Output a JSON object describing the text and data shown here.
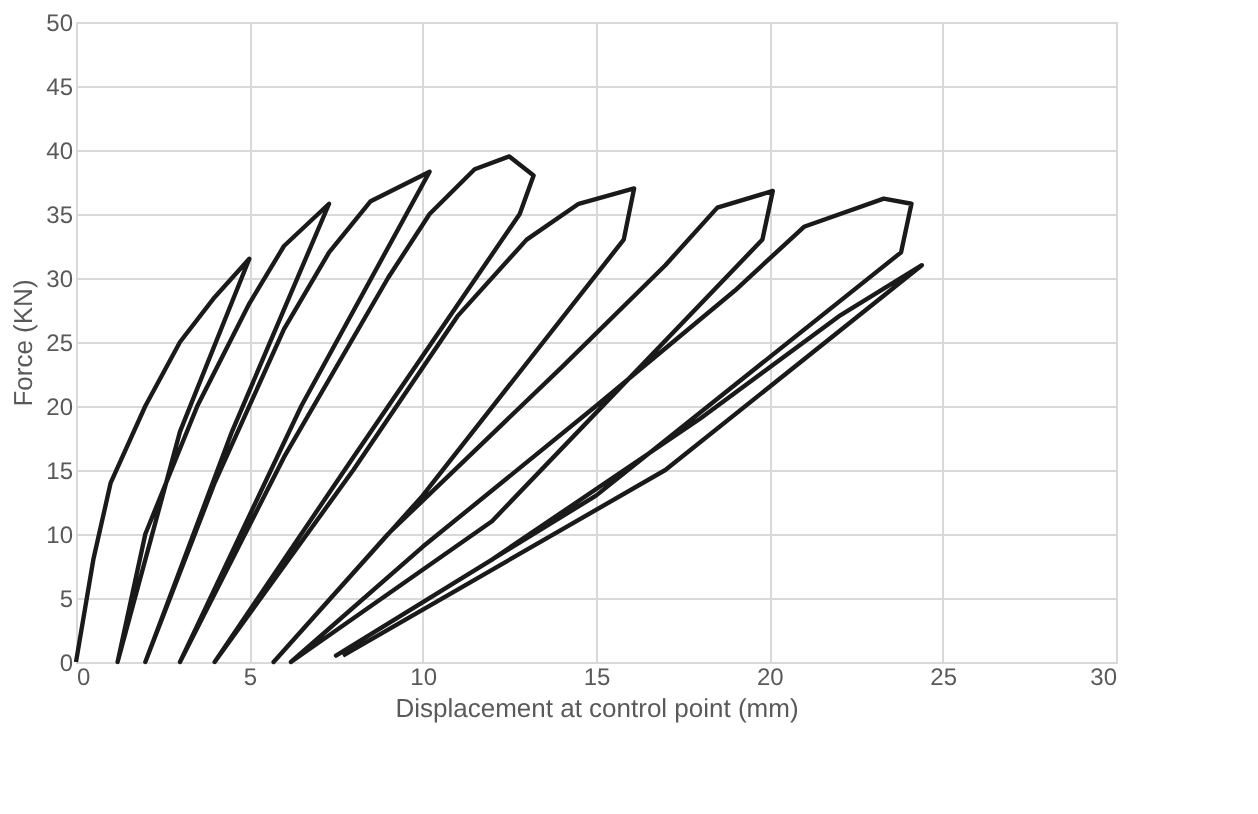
{
  "chart_data": {
    "type": "line",
    "xlabel": "Displacement at control point (mm)",
    "ylabel": "Force (KN)",
    "xlim": [
      0,
      30
    ],
    "ylim": [
      0,
      50
    ],
    "xticks": [
      0,
      5,
      10,
      15,
      20,
      25,
      30
    ],
    "yticks": [
      0,
      5,
      10,
      15,
      20,
      25,
      30,
      35,
      40,
      45,
      50
    ],
    "grid": true,
    "line_style": "solid",
    "series": [
      {
        "color": "#1a1a1a",
        "x": [
          0,
          0.5,
          1,
          2,
          3,
          4,
          5,
          3,
          1.2,
          2,
          3.5,
          5,
          6,
          7.3,
          4.5,
          2,
          4,
          6,
          7.3,
          8.5,
          10.2,
          6.5,
          3,
          6,
          9,
          10.2,
          11.5,
          12.5,
          13.2,
          12.8,
          8,
          4,
          8,
          11,
          13,
          14.5,
          16.1,
          15.8,
          10,
          5.7,
          9,
          14,
          17,
          18.5,
          20.1,
          19.8,
          12,
          6.2,
          10,
          15,
          19,
          21,
          23.3,
          24.1,
          23.8,
          15,
          7.5,
          12,
          18,
          22,
          24.4,
          17,
          7.7
        ],
        "values": [
          0,
          8,
          14,
          20,
          25,
          28.5,
          31.5,
          18,
          0,
          10,
          20,
          28,
          32.5,
          35.8,
          18,
          0,
          14,
          26,
          32,
          36,
          38.3,
          20,
          0,
          16,
          30,
          35,
          38.5,
          39.5,
          38,
          35,
          16,
          0,
          15,
          27,
          33,
          35.8,
          37,
          33,
          13,
          0,
          10,
          23,
          31,
          35.5,
          36.8,
          33,
          11,
          0,
          9,
          20,
          29,
          34,
          36.2,
          35.8,
          32,
          13,
          0.5,
          8,
          19,
          27,
          31,
          15,
          0.5
        ]
      }
    ]
  }
}
